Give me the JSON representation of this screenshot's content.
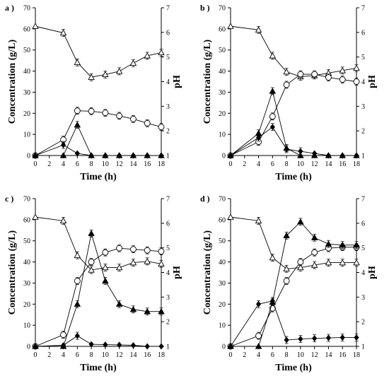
{
  "chart_data": [
    {
      "type": "line",
      "panel_label": "a )",
      "xlabel": "Time (h)",
      "ylabel_left": "Concentration (g/L)",
      "ylabel_right": "pH",
      "xlim": [
        0,
        18
      ],
      "ylim_left": [
        0,
        70
      ],
      "ylim_right": [
        1,
        7
      ],
      "x_ticks": [
        0,
        2,
        4,
        6,
        8,
        10,
        12,
        14,
        16,
        18
      ],
      "y_ticks_left": [
        0,
        10,
        20,
        30,
        40,
        50,
        60,
        70
      ],
      "y_ticks_right": [
        1,
        2,
        3,
        4,
        5,
        6,
        7
      ],
      "series": [
        {
          "marker": "open-triangle",
          "axis": "right",
          "x": [
            0,
            4,
            6,
            8,
            10,
            12,
            14,
            16,
            18
          ],
          "values": [
            6.25,
            5.98,
            4.78,
            4.18,
            4.29,
            4.42,
            4.75,
            5.05,
            5.18
          ]
        },
        {
          "marker": "open-circle",
          "axis": "left",
          "x": [
            0,
            4,
            6,
            8,
            10,
            12,
            14,
            16,
            18
          ],
          "values": [
            0,
            7.5,
            21.2,
            21,
            20.2,
            18.8,
            17.3,
            15.3,
            13.5
          ]
        },
        {
          "marker": "filled-triangle",
          "axis": "left",
          "x": [
            0,
            4,
            6,
            8,
            10,
            12,
            14,
            16,
            18
          ],
          "values": [
            0,
            0,
            14.5,
            0,
            0,
            0,
            0,
            0,
            0
          ]
        },
        {
          "marker": "filled-diamond",
          "axis": "left",
          "x": [
            0,
            4,
            6,
            8,
            10,
            12,
            14,
            16,
            18
          ],
          "values": [
            0,
            5,
            1,
            0,
            0,
            0,
            0,
            0,
            0
          ]
        }
      ]
    },
    {
      "type": "line",
      "panel_label": "b )",
      "xlabel": "Time (h)",
      "ylabel_left": "Concentration (g/L)",
      "ylabel_right": "pH",
      "xlim": [
        0,
        18
      ],
      "ylim_left": [
        0,
        70
      ],
      "ylim_right": [
        1,
        7
      ],
      "x_ticks": [
        0,
        2,
        4,
        6,
        8,
        10,
        12,
        14,
        16,
        18
      ],
      "y_ticks_left": [
        0,
        10,
        20,
        30,
        40,
        50,
        60,
        70
      ],
      "y_ticks_right": [
        1,
        2,
        3,
        4,
        5,
        6,
        7
      ],
      "series": [
        {
          "marker": "open-triangle",
          "axis": "right",
          "x": [
            0,
            4,
            6,
            8,
            10,
            12,
            14,
            16,
            18
          ],
          "values": [
            6.25,
            6.1,
            5.05,
            4.4,
            4.2,
            4.25,
            4.35,
            4.45,
            4.55
          ]
        },
        {
          "marker": "open-circle",
          "axis": "left",
          "x": [
            0,
            4,
            6,
            8,
            10,
            12,
            14,
            16,
            18
          ],
          "values": [
            0,
            6.5,
            18.5,
            33.5,
            38.5,
            38.5,
            37,
            36,
            35
          ]
        },
        {
          "marker": "filled-triangle",
          "axis": "left",
          "x": [
            0,
            4,
            6,
            8,
            10,
            12,
            14,
            16,
            18
          ],
          "values": [
            0,
            10.5,
            30.5,
            3.5,
            0,
            0,
            0,
            0,
            0
          ]
        },
        {
          "marker": "filled-diamond",
          "axis": "left",
          "x": [
            0,
            4,
            6,
            8,
            10,
            12,
            14,
            16,
            18
          ],
          "values": [
            0,
            8.5,
            13.5,
            3,
            2,
            1,
            0,
            0,
            0
          ]
        }
      ]
    },
    {
      "type": "line",
      "panel_label": "c )",
      "xlabel": "Time (h)",
      "ylabel_left": "Concentration (g/L)",
      "ylabel_right": "pH",
      "xlim": [
        0,
        18
      ],
      "ylim_left": [
        0,
        70
      ],
      "ylim_right": [
        1,
        7
      ],
      "x_ticks": [
        0,
        2,
        4,
        6,
        8,
        10,
        12,
        14,
        16,
        18
      ],
      "y_ticks_left": [
        0,
        10,
        20,
        30,
        40,
        50,
        60,
        70
      ],
      "y_ticks_right": [
        1,
        2,
        3,
        4,
        5,
        6,
        7
      ],
      "series": [
        {
          "marker": "open-triangle",
          "axis": "right",
          "x": [
            0,
            4,
            6,
            8,
            10,
            12,
            14,
            16,
            18
          ],
          "values": [
            6.25,
            6.1,
            4.7,
            4.1,
            4.2,
            4.2,
            4.4,
            4.45,
            4.35
          ]
        },
        {
          "marker": "open-circle",
          "axis": "left",
          "x": [
            0,
            4,
            6,
            8,
            10,
            12,
            14,
            16,
            18
          ],
          "values": [
            0,
            5.5,
            31,
            40,
            44.5,
            46.5,
            46,
            45.5,
            45
          ]
        },
        {
          "marker": "filled-triangle",
          "axis": "left",
          "x": [
            0,
            4,
            6,
            8,
            10,
            12,
            14,
            16,
            18
          ],
          "values": [
            0,
            0,
            20,
            53.5,
            31,
            20,
            17.5,
            16.5,
            16.5
          ]
        },
        {
          "marker": "filled-diamond",
          "axis": "left",
          "x": [
            0,
            4,
            6,
            8,
            10,
            12,
            14,
            16,
            18
          ],
          "values": [
            0,
            0.5,
            5,
            1,
            0.8,
            0.7,
            0.5,
            0,
            0
          ]
        }
      ]
    },
    {
      "type": "line",
      "panel_label": "d )",
      "xlabel": "Time (h)",
      "ylabel_left": "Concentration (g/L)",
      "ylabel_right": "pH",
      "xlim": [
        0,
        18
      ],
      "ylim_left": [
        0,
        70
      ],
      "ylim_right": [
        1,
        7
      ],
      "x_ticks": [
        0,
        2,
        4,
        6,
        8,
        10,
        12,
        14,
        16,
        18
      ],
      "y_ticks_left": [
        0,
        10,
        20,
        30,
        40,
        50,
        60,
        70
      ],
      "y_ticks_right": [
        1,
        2,
        3,
        4,
        5,
        6,
        7
      ],
      "series": [
        {
          "marker": "open-triangle",
          "axis": "right",
          "x": [
            0,
            4,
            6,
            8,
            10,
            12,
            14,
            16,
            18
          ],
          "values": [
            6.25,
            6.1,
            4.6,
            4.15,
            4.2,
            4.3,
            4.4,
            4.4,
            4.4
          ]
        },
        {
          "marker": "open-circle",
          "axis": "left",
          "x": [
            0,
            4,
            6,
            8,
            10,
            12,
            14,
            16,
            18
          ],
          "values": [
            0,
            5,
            18,
            31,
            40,
            44.5,
            46.5,
            47,
            47
          ]
        },
        {
          "marker": "filled-triangle",
          "axis": "left",
          "x": [
            0,
            4,
            6,
            8,
            10,
            12,
            14,
            16,
            18
          ],
          "values": [
            0,
            0,
            21,
            52.5,
            59,
            51.5,
            48.5,
            48,
            48
          ]
        },
        {
          "marker": "filled-diamond",
          "axis": "left",
          "x": [
            0,
            4,
            6,
            8,
            10,
            12,
            14,
            16,
            18
          ],
          "values": [
            0,
            20,
            21.5,
            3,
            3.5,
            3.8,
            4,
            4.2,
            4.2
          ]
        }
      ]
    }
  ]
}
